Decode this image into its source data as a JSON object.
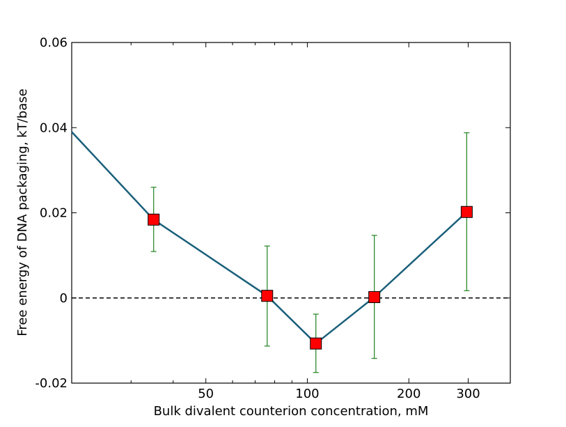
{
  "chart_data": {
    "type": "line",
    "title": "",
    "xlabel": "Bulk divalent counterion concentration, mM",
    "ylabel": "Free energy of DNA packaging, kT/base",
    "x_scale": "log",
    "xlim": [
      20,
      400
    ],
    "ylim": [
      -0.02,
      0.06
    ],
    "x_ticks": [
      50,
      100,
      200,
      300
    ],
    "x_tick_labels": [
      "50",
      "100",
      "200",
      "300"
    ],
    "y_ticks": [
      -0.02,
      0,
      0.02,
      0.04,
      0.06
    ],
    "y_tick_labels": [
      "-0.02",
      "0",
      "0.02",
      "0.04",
      "0.06"
    ],
    "grid": false,
    "legend": "none",
    "series": [
      {
        "x": [
          20,
          35,
          76,
          106,
          158,
          297
        ],
        "y": [
          0.039,
          0.0184,
          0.0005,
          -0.0107,
          0.0002,
          0.0202
        ],
        "err_low": [
          null,
          0.0109,
          -0.0113,
          -0.0175,
          -0.0142,
          0.0017
        ],
        "err_high": [
          null,
          0.026,
          0.0122,
          -0.0038,
          0.0147,
          0.0388
        ],
        "marker": "square",
        "line_color": "#1a5f7a",
        "marker_color": "#ff0000",
        "errorbar_color": "#2e8b2e"
      }
    ],
    "reference_line": {
      "y": 0,
      "style": "dashed",
      "color": "#000000"
    }
  }
}
